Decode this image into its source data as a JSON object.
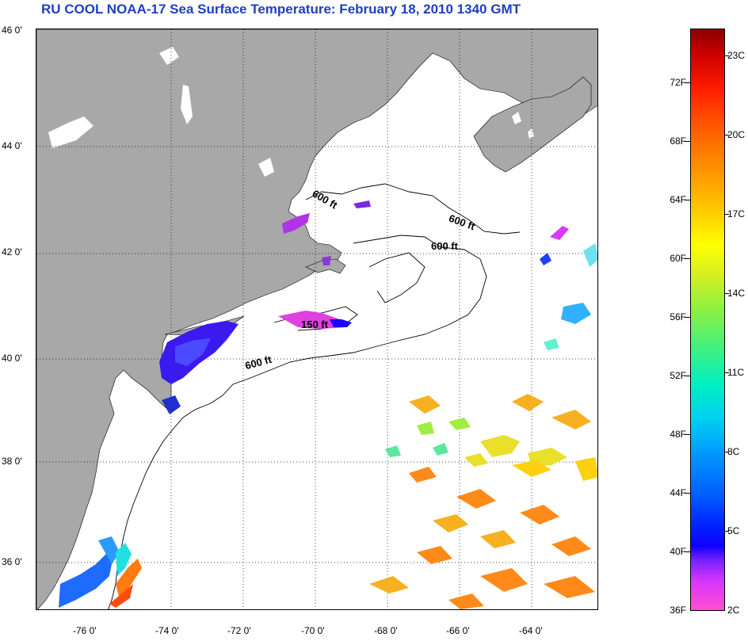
{
  "title": "RU COOL  NOAA-17  Sea Surface Temperature:  February 18, 2010 1340 GMT",
  "latitude_labels": [
    "46 0'",
    "44 0'",
    "42 0'",
    "40 0'",
    "38 0'",
    "36 0'"
  ],
  "longitude_labels": [
    "-76 0'",
    "-74 0'",
    "-72 0'",
    "-70 0'",
    "-68 0'",
    "-66 0'",
    "-64 0'"
  ],
  "contour_labels": [
    "600 ft",
    "600 ft",
    "600 ft",
    "150 ft",
    "600 ft"
  ],
  "colorbar": {
    "fahrenheit_ticks": [
      "72F",
      "68F",
      "64F",
      "60F",
      "56F",
      "52F",
      "48F",
      "44F",
      "40F",
      "36F"
    ],
    "celsius_ticks": [
      "23C",
      "20C",
      "17C",
      "14C",
      "11C",
      "8C",
      "5C",
      "2C"
    ]
  },
  "colors": {
    "land": "#a8a8a8",
    "ocean_no_data": "#ffffff",
    "title": "#1f3fbf"
  }
}
